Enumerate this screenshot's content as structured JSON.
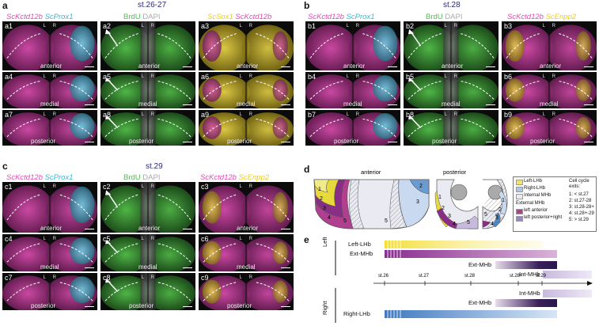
{
  "panel_letters": {
    "a": "a",
    "b": "b",
    "c": "c",
    "d": "d",
    "e": "e"
  },
  "stages": {
    "a": "st.26-27",
    "b": "st.28",
    "c": "st.29"
  },
  "headers": {
    "col1": {
      "g1": "ScKctd12b",
      "g2": "ScProx1"
    },
    "col2": {
      "g1": "BrdU",
      "g2": "DAPI"
    },
    "a_col3": {
      "g1": "ScSox1",
      "g2": "ScKctd12b"
    },
    "bc_col3": {
      "g1": "ScKctd12b",
      "g2": "ScEnpp2"
    }
  },
  "planes": {
    "top": "anterior",
    "mid": "medial",
    "bot": "posterior"
  },
  "lr": {
    "l": "L",
    "r": "R"
  },
  "ids": {
    "a": [
      "a1",
      "a2",
      "a3",
      "a4",
      "a5",
      "a6",
      "a7",
      "a8",
      "a9"
    ],
    "b": [
      "b1",
      "b2",
      "b3",
      "b4",
      "b5",
      "b6",
      "b7",
      "b8",
      "b9"
    ],
    "c": [
      "c1",
      "c2",
      "c3",
      "c4",
      "c5",
      "c6",
      "c7",
      "c8",
      "c9"
    ]
  },
  "schematic": {
    "titles": {
      "ant": "anterior",
      "post": "posterior"
    },
    "zones": [
      "1",
      "2",
      "3",
      "4",
      "5"
    ],
    "legend": {
      "left_lhb": "Left-LHb",
      "right_lhb": "Right-LHb",
      "internal": "Internal MHb",
      "external_header": "External MHb",
      "left_ant": "left anterior",
      "left_post": "left posterior+right",
      "cc_title1": "Cell cycle",
      "cc_title2": "exits:",
      "cc": [
        "1: < st.27",
        "2: st.27-28",
        "3: st.28-28+",
        "4: st.28+-29",
        "5: > st.29"
      ]
    }
  },
  "timeline": {
    "side_left": "Left",
    "side_right": "Right",
    "ticks": [
      "st.26",
      "st.27",
      "st.28",
      "st.28+",
      "st.29"
    ],
    "bars": {
      "left_lhb": "Left-LHb",
      "ext_mhb_left": "Ext-MHb",
      "ext_mhb_left2": "Ext-MHb",
      "int_mhb_left": "Int-MHb",
      "int_mhb_right": "Int-MHb",
      "ext_mhb_right": "Ext-MHb",
      "right_lhb": "Right-LHb"
    }
  },
  "colors": {
    "magenta": "#d63fa7",
    "cyan": "#3fb8d6",
    "green": "#3fbf3f",
    "yellow": "#e8d22a",
    "purple": "#7a2d86",
    "blue": "#4d86c6",
    "lavender": "#c5b7dc"
  }
}
